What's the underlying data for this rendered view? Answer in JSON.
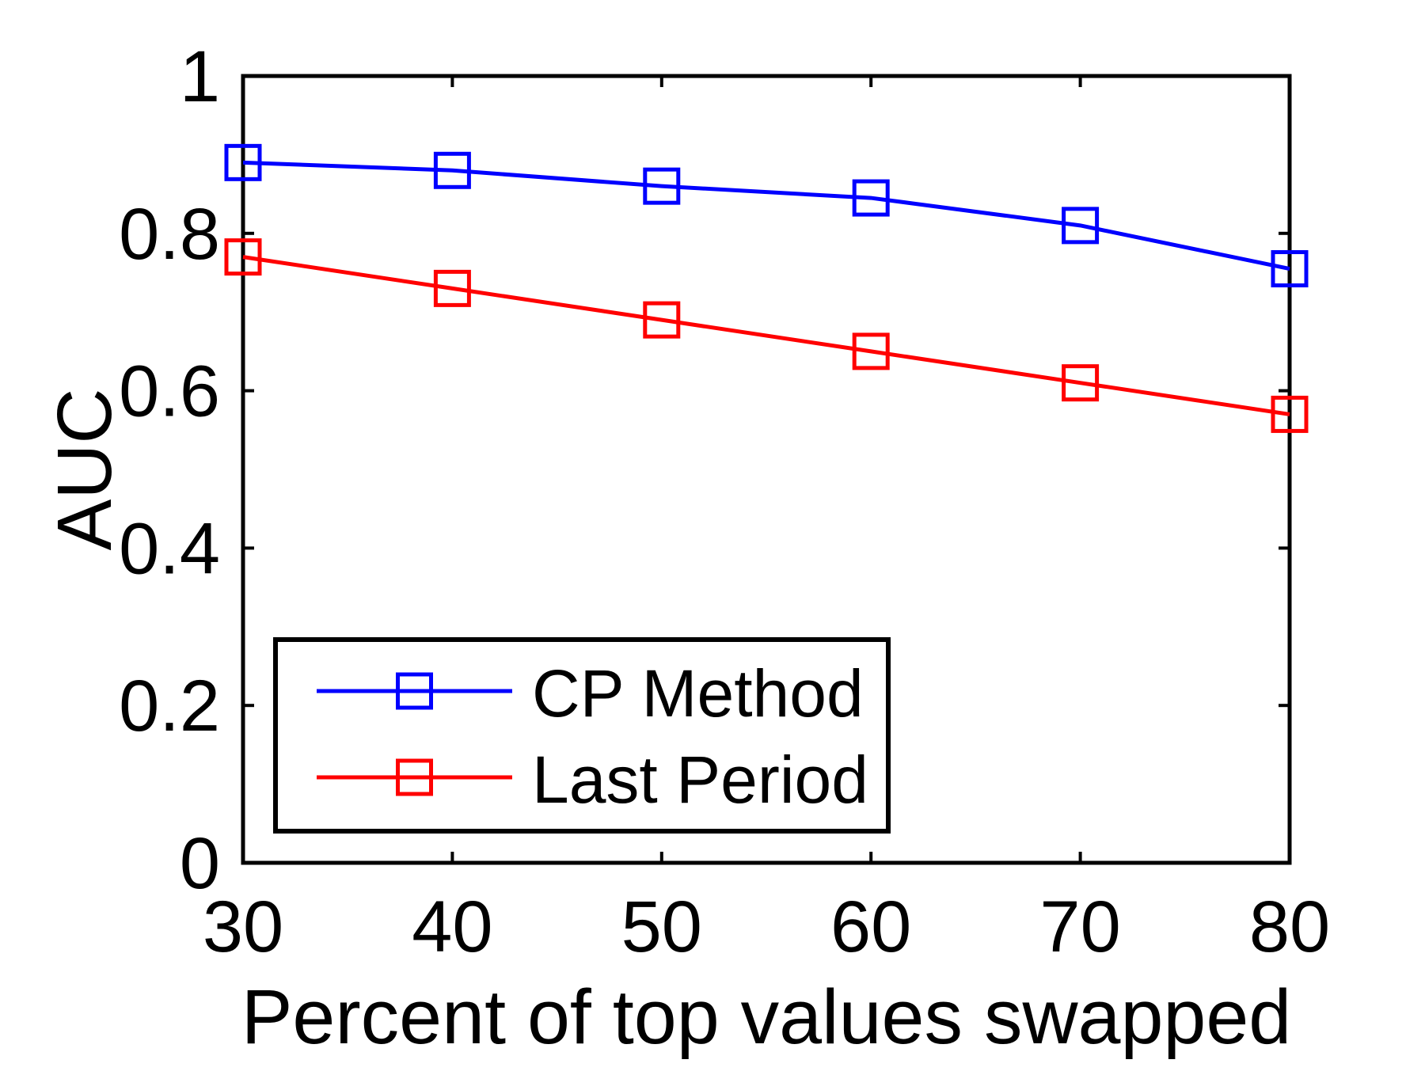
{
  "figure": {
    "background": "#ffffff",
    "axis_color": "#000000"
  },
  "chart_data": {
    "type": "line",
    "title": "",
    "xlabel": "Percent of top values swapped",
    "ylabel": "AUC",
    "xlim": [
      30,
      80
    ],
    "ylim": [
      0,
      1
    ],
    "grid": false,
    "legend_position": "lower-left",
    "x": [
      30,
      40,
      50,
      60,
      70,
      80
    ],
    "xtick_labels": [
      "30",
      "40",
      "50",
      "60",
      "70",
      "80"
    ],
    "yticks": [
      0,
      0.2,
      0.4,
      0.6,
      0.8,
      1
    ],
    "ytick_labels": [
      "0",
      "0.2",
      "0.4",
      "0.6",
      "0.8",
      "1"
    ],
    "series": [
      {
        "name": "CP Method",
        "color": "#0000ff",
        "marker": "open-square",
        "values": [
          0.89,
          0.88,
          0.86,
          0.845,
          0.81,
          0.755
        ]
      },
      {
        "name": "Last Period",
        "color": "#ff0000",
        "marker": "open-square",
        "values": [
          0.77,
          0.73,
          0.69,
          0.65,
          0.61,
          0.57
        ]
      }
    ]
  }
}
